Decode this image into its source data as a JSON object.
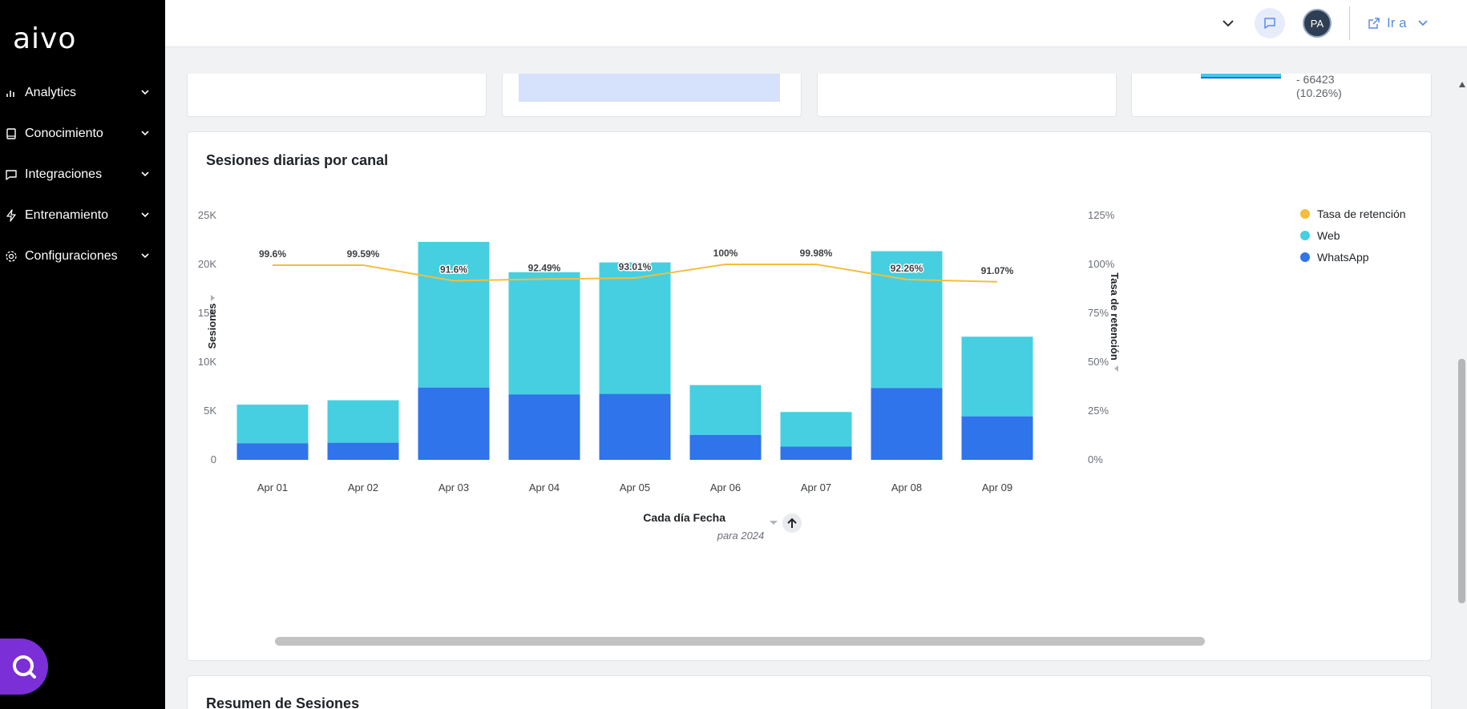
{
  "sidebar": {
    "logo": "aivo",
    "items": [
      {
        "label": "Analytics",
        "icon": "bar-chart-icon"
      },
      {
        "label": "Conocimiento",
        "icon": "book-icon"
      },
      {
        "label": "Integraciones",
        "icon": "chat-bubble-icon"
      },
      {
        "label": "Entrenamiento",
        "icon": "lightning-icon"
      },
      {
        "label": "Configuraciones",
        "icon": "gear-icon"
      }
    ]
  },
  "topbar": {
    "avatar_initials": "PA",
    "goto_label": "Ir a"
  },
  "kpi_cards": {
    "card4_text_line1": "- 66423",
    "card4_text_line2": "(10.26%)"
  },
  "colors": {
    "web": "#46cfe0",
    "whatsapp": "#2f74ea",
    "retention": "#f4be3a"
  },
  "chart_data": {
    "type": "bar",
    "title": "Sesiones diarias por canal",
    "categories": [
      "Apr 01",
      "Apr 02",
      "Apr 03",
      "Apr 04",
      "Apr 05",
      "Apr 06",
      "Apr 07",
      "Apr 08",
      "Apr 09"
    ],
    "series": [
      {
        "name": "WhatsApp",
        "type": "bar",
        "stacked": true,
        "values": [
          1700,
          1750,
          7400,
          6700,
          6750,
          2550,
          1350,
          7350,
          4450
        ]
      },
      {
        "name": "Web",
        "type": "bar",
        "stacked": true,
        "values": [
          3950,
          4350,
          14900,
          12500,
          13450,
          5100,
          3550,
          14000,
          8150
        ]
      },
      {
        "name": "Tasa de retención",
        "type": "line",
        "axis": "right",
        "values": [
          99.6,
          99.59,
          91.6,
          92.49,
          93.01,
          100,
          99.98,
          92.26,
          91.07
        ],
        "labels": [
          "99.6%",
          "99.59%",
          "91.6%",
          "92.49%",
          "93.01%",
          "100%",
          "99.98%",
          "92.26%",
          "91.07%"
        ]
      }
    ],
    "legend": [
      "Tasa de retención",
      "Web",
      "WhatsApp"
    ],
    "legend_position": "right",
    "ylabel": "Sesiones",
    "ylabel_right": "Tasa de retención",
    "xlabel": "Cada día Fecha",
    "xlabel_sub": "para 2024",
    "ylim": [
      0,
      25000
    ],
    "ylim_right": [
      0,
      125
    ],
    "yticks": [
      "0",
      "5K",
      "10K",
      "15K",
      "20K",
      "25K"
    ],
    "yticks_right": [
      "0%",
      "25%",
      "50%",
      "75%",
      "100%",
      "125%"
    ]
  },
  "summary": {
    "title": "Resumen de Sesiones"
  }
}
